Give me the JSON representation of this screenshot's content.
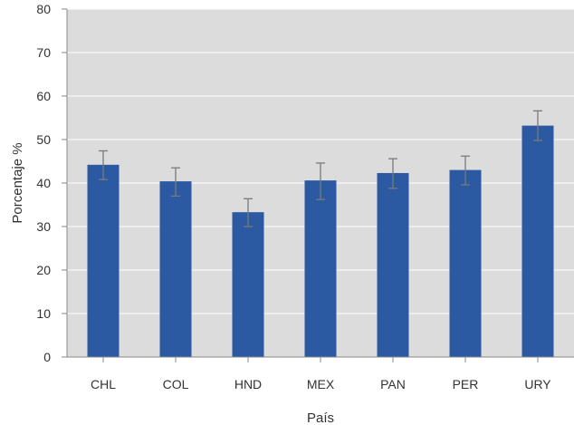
{
  "chart_data": {
    "type": "bar",
    "title": "",
    "xlabel": "País",
    "ylabel": "Porcentaje %",
    "ylim": [
      0,
      80
    ],
    "yticks": [
      0,
      10,
      20,
      30,
      40,
      50,
      60,
      70,
      80
    ],
    "grid": true,
    "categories": [
      "CHL",
      "COL",
      "HND",
      "MEX",
      "PAN",
      "PER",
      "URY"
    ],
    "values": [
      44.2,
      40.4,
      33.3,
      40.6,
      42.3,
      43.0,
      53.2
    ],
    "error_low": [
      40.8,
      37.0,
      30.0,
      36.2,
      38.8,
      39.6,
      49.8
    ],
    "error_high": [
      47.4,
      43.5,
      36.4,
      44.6,
      45.6,
      46.2,
      56.6
    ],
    "colors": {
      "bar": "#2b5aa3",
      "plot_background": "#dcdcdc",
      "grid": "#ffffff",
      "error_bar": "#7a7a7a",
      "axis": "#888888"
    }
  }
}
